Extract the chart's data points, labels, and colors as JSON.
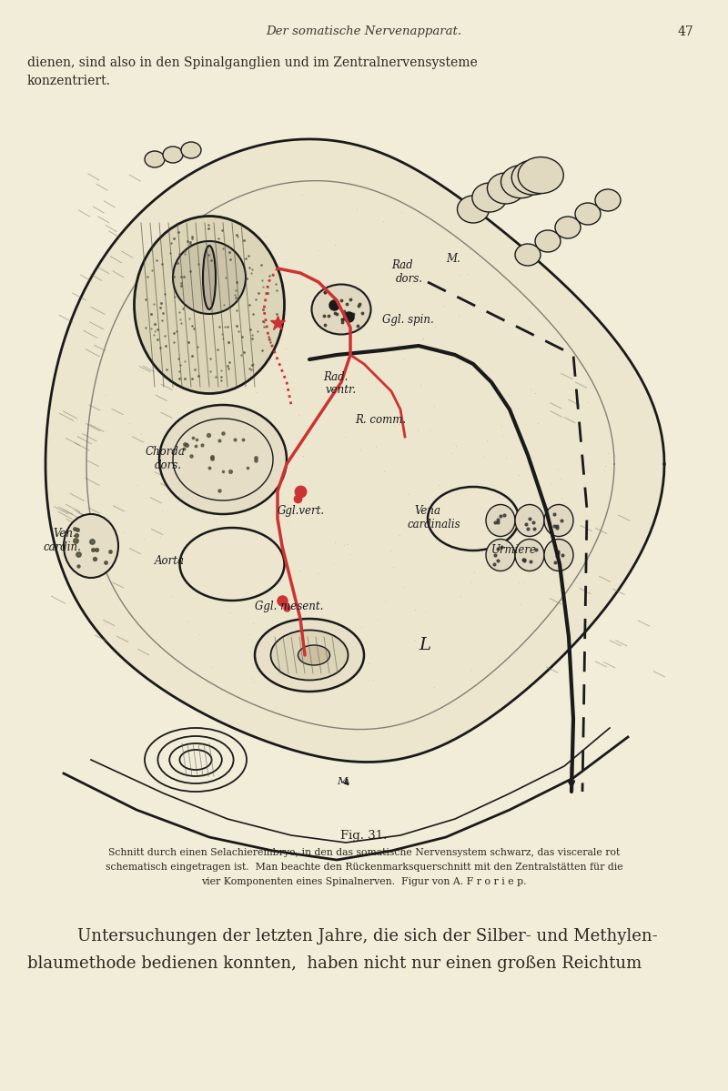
{
  "background_color": "#f2edd8",
  "page_width": 8.0,
  "page_height": 11.99,
  "header_text": "Der somatische Nervenapparat.",
  "page_number": "47",
  "intro_line1": "dienen, sind also in den Spinalganglien und im Zentralnervensysteme",
  "intro_line2": "konzentriert.",
  "fig_caption_title": "Fig. 31.",
  "fig_caption_line1": "Schnitt durch einen Selachierembryo, in den das somatische Nervensystem schwarz, das viscerale rot",
  "fig_caption_line2": "schematisch eingetragen ist.  Man beachte den Rückenmarksquerschnitt mit den Zentralstätten für die",
  "fig_caption_line3": "vier Komponenten eines Spinalnerven.  Figur von A. F r o r i e p.",
  "closing_line1": "Untersuchungen der letzten Jahre, die sich der Silber- und Methylen-",
  "closing_line2": "blaumethode bedienen konnten,  haben nicht nur einen großen Reichtum",
  "text_color": "#2a2820",
  "header_color": "#3a3830"
}
